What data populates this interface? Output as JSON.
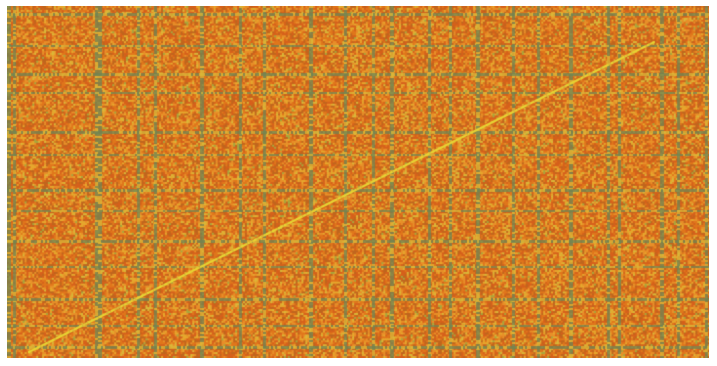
{
  "chart_data": {
    "type": "heatmap",
    "title": "",
    "xlabel": "",
    "ylabel": "",
    "grid": false,
    "legend": "none",
    "colormap": [
      "#c0661e",
      "#d6611c",
      "#e0771c",
      "#e8902a",
      "#e6a82e",
      "#d9b83a",
      "#a7a83e",
      "#6f8a50",
      "#5f7f5e"
    ],
    "background_color": "#e2842a",
    "band_color": "#6f8654",
    "diagonal_color": "#e7d534",
    "cell_grid": {
      "columns": 360,
      "rows": 180
    },
    "vertical_bands": [
      0.0,
      0.008,
      0.125,
      0.13,
      0.185,
      0.21,
      0.275,
      0.33,
      0.365,
      0.43,
      0.48,
      0.52,
      0.545,
      0.6,
      0.63,
      0.668,
      0.72,
      0.755,
      0.8,
      0.855,
      0.87,
      0.93,
      0.955,
      0.995
    ],
    "horizontal_bands": [
      0.02,
      0.11,
      0.19,
      0.245,
      0.355,
      0.42,
      0.52,
      0.58,
      0.665,
      0.74,
      0.83,
      0.905,
      0.965
    ],
    "diagonal": {
      "from": [
        0.03,
        0.98
      ],
      "to": [
        0.92,
        0.1
      ]
    }
  }
}
